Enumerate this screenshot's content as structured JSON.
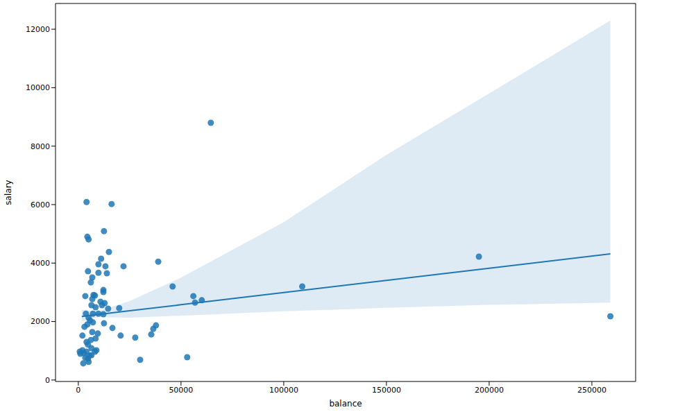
{
  "chart_data": {
    "type": "scatter",
    "x_label": "balance",
    "y_label": "salary",
    "color": "#1f77b4",
    "grid": false,
    "marker": "circle",
    "xlim": [
      -11100,
      271300
    ],
    "ylim": [
      -50,
      12880
    ],
    "xticks": [
      0,
      50000,
      100000,
      150000,
      200000,
      250000
    ],
    "yticks": [
      0,
      2000,
      4000,
      6000,
      8000,
      10000,
      12000
    ],
    "x": [
      259000,
      195000,
      109000,
      64500,
      4000,
      16200,
      12500,
      4400,
      5000,
      14900,
      11100,
      9800,
      13200,
      22000,
      38900,
      4700,
      9800,
      13900,
      6800,
      6100,
      45900,
      12200,
      12200,
      56000,
      7400,
      8100,
      3400,
      6800,
      60100,
      56800,
      10800,
      12800,
      6400,
      11500,
      8400,
      19900,
      14500,
      3700,
      7100,
      9800,
      12200,
      5000,
      5700,
      7100,
      12500,
      4400,
      37800,
      3000,
      36500,
      16600,
      6800,
      9500,
      35500,
      2000,
      20600,
      27700,
      8400,
      6100,
      4000,
      4700,
      6400,
      2000,
      700,
      4000,
      8100,
      8800,
      6400,
      3400,
      4700,
      53000,
      30100,
      5000,
      2400,
      1000,
      2700,
      5400
    ],
    "y": [
      2180,
      4220,
      3200,
      8800,
      6090,
      6020,
      5090,
      4900,
      4810,
      4380,
      4150,
      3960,
      3890,
      3890,
      4050,
      3720,
      3670,
      3650,
      3510,
      3340,
      3200,
      3080,
      3010,
      2870,
      2910,
      2890,
      2870,
      2770,
      2730,
      2650,
      2680,
      2630,
      2560,
      2560,
      2490,
      2460,
      2440,
      2270,
      2270,
      2270,
      2250,
      2130,
      2040,
      1970,
      1940,
      1900,
      1870,
      1820,
      1750,
      1780,
      1640,
      1590,
      1560,
      1520,
      1520,
      1450,
      1420,
      1370,
      1300,
      1210,
      1090,
      1020,
      970,
      970,
      970,
      1020,
      850,
      760,
      730,
      780,
      690,
      620,
      570,
      900,
      920,
      830
    ],
    "fit": {
      "x": [
        1700,
        10000,
        25000,
        50000,
        100000,
        150000,
        200000,
        259000
      ],
      "y": [
        2174,
        2243,
        2368,
        2576,
        2992,
        3408,
        3824,
        4315
      ],
      "lower": [
        2000,
        2150,
        2130,
        2200,
        2350,
        2470,
        2570,
        2650
      ],
      "upper": [
        2400,
        2350,
        2700,
        3500,
        5400,
        7700,
        9800,
        12300
      ]
    }
  }
}
